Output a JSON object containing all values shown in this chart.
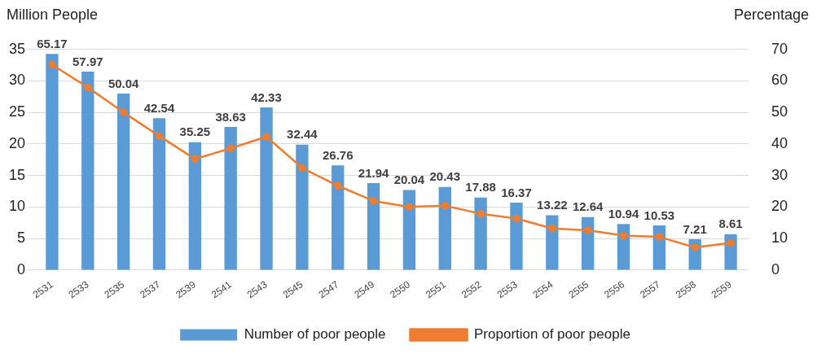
{
  "chart_data": {
    "type": "bar",
    "ylabel": "Million People",
    "y2label": "Percentage",
    "categories": [
      "2531",
      "2533",
      "2535",
      "2537",
      "2539",
      "2541",
      "2543",
      "2545",
      "2547",
      "2549",
      "2550",
      "2551",
      "2552",
      "2553",
      "2554",
      "2555",
      "2556",
      "2557",
      "2558",
      "2559"
    ],
    "series": [
      {
        "name": "Number of poor people",
        "color": "#5b9bd5",
        "values": [
          34.3,
          31.5,
          28.0,
          24.1,
          20.3,
          22.7,
          25.8,
          19.9,
          16.6,
          13.8,
          12.7,
          13.2,
          11.5,
          10.7,
          8.7,
          8.4,
          7.3,
          7.1,
          4.9,
          5.7
        ]
      },
      {
        "name": "Proportion of poor people",
        "type": "line",
        "axis": "y2",
        "color": "#ed7d31",
        "marker": "circle",
        "values": [
          65.17,
          57.97,
          50.04,
          42.54,
          35.25,
          38.63,
          42.33,
          32.44,
          26.76,
          21.94,
          20.04,
          20.43,
          17.88,
          16.37,
          13.22,
          12.64,
          10.94,
          10.53,
          7.21,
          8.61
        ],
        "value_labels": [
          "65.17",
          "57.97",
          "50.04",
          "42.54",
          "35.25",
          "38.63",
          "42.33",
          "32.44",
          "26.76",
          "21.94",
          "20.04",
          "20.43",
          "17.88",
          "16.37",
          "13.22",
          "12.64",
          "10.94",
          "10.53",
          "7.21",
          "8.61"
        ]
      }
    ],
    "ylim": [
      0,
      35
    ],
    "yticks": [
      0,
      5,
      10,
      15,
      20,
      25,
      30,
      35
    ],
    "y2lim": [
      0,
      70
    ],
    "y2ticks": [
      0,
      10,
      20,
      30,
      40,
      50,
      60,
      70
    ],
    "grid": "y",
    "legend": "bottom"
  }
}
